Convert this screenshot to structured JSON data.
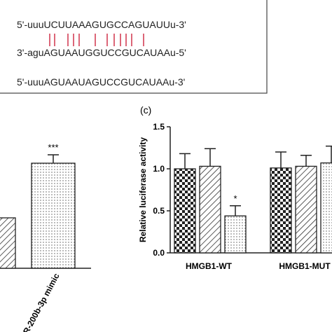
{
  "sequences": [
    "5'-uuuUCUUAAAGUGCCAGUAUUu-3'",
    "3'-aguAGUAAUGGUCCGUCAUAAu-5'",
    "5'-uuuAGUAAUAGUCCGUCAUAAu-3'"
  ],
  "panel_label": "(c)",
  "chart_data": [
    {
      "type": "bar",
      "categories": [
        null,
        "R-200b-3p mimic"
      ],
      "ylim": [
        0,
        1.6
      ],
      "series": [
        {
          "values": [
            0.6,
            1.25
          ],
          "errors": [
            0.12,
            0.1
          ],
          "patterns": [
            "hatch",
            "dots"
          ],
          "significance": [
            null,
            "***"
          ]
        }
      ]
    },
    {
      "type": "bar",
      "y_label": "Relative luciferase activity",
      "categories": [
        "HMGB1-WT",
        "HMGB1-MUT"
      ],
      "ylim": [
        0,
        1.5
      ],
      "yticks": [
        {
          "value": 0,
          "label": "0.0"
        },
        0.5,
        {
          "value": 1,
          "label": "1.0"
        },
        1.5
      ],
      "series": [
        {
          "pattern": "checker",
          "values": [
            1.0,
            1.01
          ],
          "errors": [
            0.18,
            0.19
          ],
          "significance": [
            null,
            null
          ]
        },
        {
          "pattern": "hatch",
          "values": [
            1.03,
            1.03
          ],
          "errors": [
            0.21,
            0.13
          ],
          "significance": [
            null,
            null
          ]
        },
        {
          "pattern": "dots",
          "values": [
            0.44,
            1.07
          ],
          "errors": [
            0.12,
            0.2
          ],
          "significance": [
            "*",
            null
          ]
        }
      ]
    }
  ]
}
